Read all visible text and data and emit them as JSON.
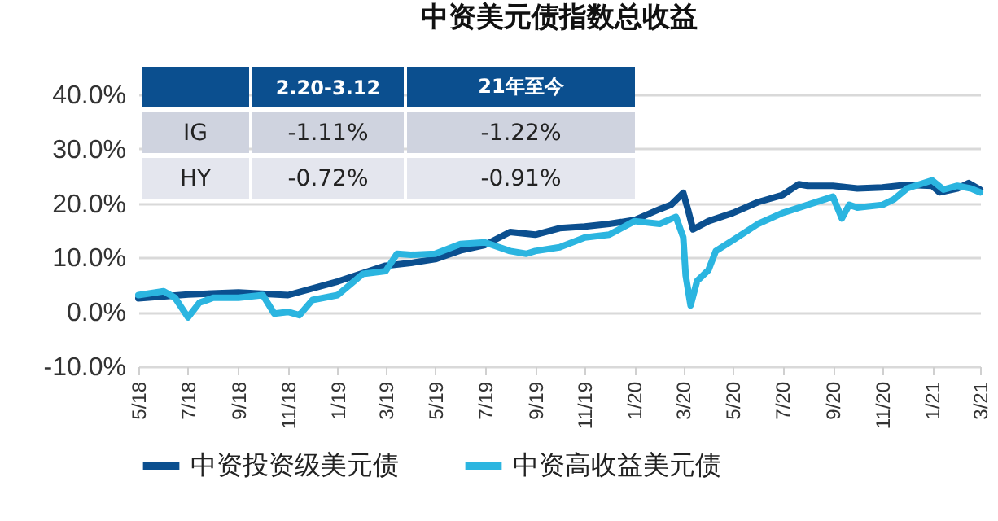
{
  "chart_data": {
    "type": "line",
    "title": "中资美元债指数总收益",
    "annotations": [
      "2.20-3.12",
      "21年至今",
      "IG",
      "-1.11%",
      "-1.22%",
      "HY",
      "-0.72%",
      "-0.91%"
    ],
    "series": [
      {
        "name": "中资投资级美元债",
        "color": "#0b4f8f",
        "x": [
          "2018-05-01",
          "2018-07-01",
          "2018-09-01",
          "2018-11-01",
          "2019-01-01",
          "2019-03-01",
          "2019-04-01",
          "2019-05-01",
          "2019-06-01",
          "2019-07-01",
          "2019-08-01",
          "2019-09-01",
          "2019-10-01",
          "2019-11-01",
          "2019-12-01",
          "2020-01-01",
          "2020-02-01",
          "2020-02-15",
          "2020-03-01",
          "2020-03-07",
          "2020-03-13",
          "2020-04-01",
          "2020-05-01",
          "2020-06-01",
          "2020-07-01",
          "2020-07-21",
          "2020-08-01",
          "2020-09-01",
          "2020-10-01",
          "2020-11-01",
          "2020-12-01",
          "2021-01-01",
          "2021-01-10",
          "2021-02-01",
          "2021-02-15",
          "2021-03-01"
        ],
        "values": [
          2.5,
          3.2,
          3.6,
          3.1,
          5.6,
          8.5,
          9,
          9.7,
          11.3,
          12.3,
          14.7,
          14.2,
          15.4,
          15.7,
          16.2,
          16.9,
          18.9,
          19.7,
          21.9,
          18.7,
          15.2,
          16.7,
          18.2,
          20.2,
          21.5,
          23.5,
          23.2,
          23.2,
          22.7,
          22.9,
          23.4,
          23.2,
          22,
          22.7,
          23.7,
          22.5
        ]
      },
      {
        "name": "中资高收益美元债",
        "color": "#2bb5e0",
        "x": [
          "2018-05-01",
          "2018-06-01",
          "2018-06-15",
          "2018-07-01",
          "2018-07-15",
          "2018-08-01",
          "2018-09-01",
          "2018-10-01",
          "2018-10-15",
          "2018-11-01",
          "2018-11-15",
          "2018-12-01",
          "2019-01-01",
          "2019-02-01",
          "2019-03-01",
          "2019-03-15",
          "2019-04-01",
          "2019-05-01",
          "2019-06-01",
          "2019-07-01",
          "2019-08-01",
          "2019-08-21",
          "2019-09-01",
          "2019-10-01",
          "2019-11-01",
          "2019-12-01",
          "2020-01-01",
          "2020-02-01",
          "2020-02-21",
          "2020-03-01",
          "2020-03-04",
          "2020-03-10",
          "2020-03-18",
          "2020-04-01",
          "2020-04-10",
          "2020-05-01",
          "2020-06-01",
          "2020-07-01",
          "2020-08-01",
          "2020-09-01",
          "2020-09-12",
          "2020-09-21",
          "2020-10-01",
          "2020-11-01",
          "2020-11-15",
          "2020-12-01",
          "2021-01-01",
          "2021-01-15",
          "2021-02-01",
          "2021-02-18",
          "2021-03-01"
        ],
        "values": [
          3.1,
          3.8,
          2.6,
          -1,
          1.7,
          2.6,
          2.6,
          3.1,
          -0.3,
          0,
          -0.6,
          2.2,
          3.1,
          7,
          7.5,
          10.7,
          10.5,
          10.7,
          12.5,
          12.8,
          11.2,
          10.7,
          11.2,
          11.9,
          13.7,
          14.2,
          16.7,
          16.2,
          17.5,
          13.7,
          6.7,
          1.2,
          5.7,
          7.7,
          11.2,
          13.2,
          16.2,
          18.2,
          19.7,
          21.2,
          17.2,
          19.7,
          19.2,
          19.7,
          20.7,
          22.7,
          24.2,
          22.5,
          23.2,
          22.7,
          22
        ]
      }
    ],
    "xlim": [
      "2018-05-01",
      "2021-03-01"
    ],
    "xticks": [
      {
        "value": "2018-05-01",
        "label": "5/18"
      },
      {
        "value": "2018-07-01",
        "label": "7/18"
      },
      {
        "value": "2018-09-01",
        "label": "9/18"
      },
      {
        "value": "2018-11-01",
        "label": "11/18"
      },
      {
        "value": "2019-01-01",
        "label": "1/19"
      },
      {
        "value": "2019-03-01",
        "label": "3/19"
      },
      {
        "value": "2019-05-01",
        "label": "5/19"
      },
      {
        "value": "2019-07-01",
        "label": "7/19"
      },
      {
        "value": "2019-09-01",
        "label": "9/19"
      },
      {
        "value": "2019-11-01",
        "label": "11/19"
      },
      {
        "value": "2020-01-01",
        "label": "1/20"
      },
      {
        "value": "2020-03-01",
        "label": "3/20"
      },
      {
        "value": "2020-05-01",
        "label": "5/20"
      },
      {
        "value": "2020-07-01",
        "label": "7/20"
      },
      {
        "value": "2020-09-01",
        "label": "9/20"
      },
      {
        "value": "2020-11-01",
        "label": "11/20"
      },
      {
        "value": "2021-01-01",
        "label": "1/21"
      },
      {
        "value": "2021-03-01",
        "label": "3/21"
      }
    ],
    "ylim": [
      -10,
      40
    ],
    "yticks": [
      {
        "value": -10,
        "label": "-10.0%"
      },
      {
        "value": 0,
        "label": "0.0%"
      },
      {
        "value": 10,
        "label": "10.0%"
      },
      {
        "value": 20,
        "label": "20.0%"
      },
      {
        "value": 30,
        "label": "30.0%"
      },
      {
        "value": 40,
        "label": "40.0%"
      }
    ],
    "grid": "y",
    "legend": "bottom",
    "marker": "none",
    "line_style": "solid"
  }
}
